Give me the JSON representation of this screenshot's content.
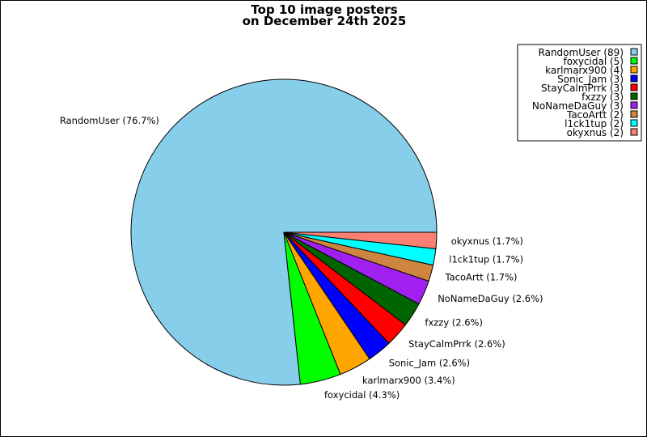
{
  "chart_data": {
    "type": "pie",
    "title": "Top 10 image posters",
    "subtitle": "on December 24th 2025",
    "legend_position": "top-right",
    "slices": [
      {
        "name": "RandomUser",
        "count": 89,
        "percent_label": "76.7%",
        "color": "#87CEEB"
      },
      {
        "name": "foxycidal",
        "count": 5,
        "percent_label": "4.3%",
        "color": "#00FF00"
      },
      {
        "name": "karlmarx900",
        "count": 4,
        "percent_label": "3.4%",
        "color": "#FFA500"
      },
      {
        "name": "Sonic_Jam",
        "count": 3,
        "percent_label": "2.6%",
        "color": "#0000FF"
      },
      {
        "name": "StayCalmPrrk",
        "count": 3,
        "percent_label": "2.6%",
        "color": "#FF0000"
      },
      {
        "name": "fxzzy",
        "count": 3,
        "percent_label": "2.6%",
        "color": "#006400"
      },
      {
        "name": "NoNameDaGuy",
        "count": 3,
        "percent_label": "2.6%",
        "color": "#A020F0"
      },
      {
        "name": "TacoArtt",
        "count": 2,
        "percent_label": "1.7%",
        "color": "#CD853F"
      },
      {
        "name": "l1ck1tup",
        "count": 2,
        "percent_label": "1.7%",
        "color": "#00FFFF"
      },
      {
        "name": "okyxnus",
        "count": 2,
        "percent_label": "1.7%",
        "color": "#FA8072"
      }
    ]
  }
}
